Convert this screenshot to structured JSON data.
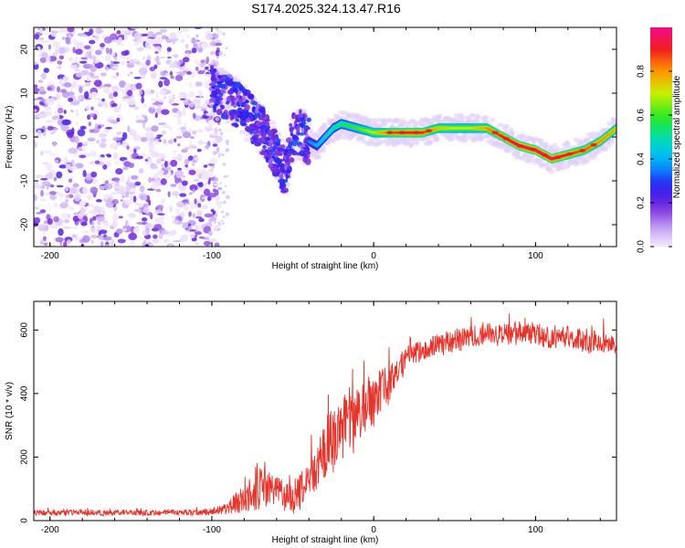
{
  "figure_title": "S174.2025.324.13.47.R16",
  "chart_data": [
    {
      "type": "heatmap",
      "name": "spectrogram",
      "xlabel": "Height of straight line (km)",
      "ylabel": "Frequency (Hz)",
      "xlim": [
        -210,
        150
      ],
      "ylim": [
        -25,
        25
      ],
      "xticks": [
        -200,
        -100,
        0,
        100
      ],
      "xtick_labels": [
        "-200",
        "-100",
        "0",
        "100"
      ],
      "yticks": [
        -20,
        -10,
        0,
        10,
        20
      ],
      "ytick_labels": [
        "-20",
        "-10",
        "0",
        "10",
        "20"
      ],
      "colorbar": {
        "label": "Normalized spectral amplitude",
        "range": [
          0.0,
          1.0
        ],
        "ticks": [
          0.0,
          0.2,
          0.4,
          0.6,
          0.8
        ],
        "tick_labels": [
          "0.0",
          "0.2",
          "0.4",
          "0.6",
          "0.8"
        ]
      },
      "noise_region_x": [
        -210,
        -95
      ],
      "ridge": {
        "x": [
          -100,
          -90,
          -80,
          -70,
          -60,
          -55,
          -50,
          -45,
          -40,
          -35,
          -30,
          -25,
          -20,
          -10,
          0,
          10,
          20,
          30,
          40,
          50,
          60,
          70,
          80,
          90,
          100,
          110,
          120,
          130,
          140,
          150
        ],
        "freq": [
          11,
          9,
          6,
          2,
          -4,
          -8,
          0,
          1,
          -1,
          -2,
          0,
          2,
          3,
          2,
          1,
          1,
          1,
          1,
          2,
          2,
          2,
          2,
          0,
          -2,
          -3,
          -5,
          -4,
          -3,
          -1,
          2
        ],
        "amplitude": [
          0.15,
          0.15,
          0.2,
          0.2,
          0.2,
          0.15,
          0.3,
          0.35,
          0.35,
          0.4,
          0.45,
          0.5,
          0.55,
          0.6,
          0.7,
          0.85,
          0.9,
          0.9,
          0.75,
          0.7,
          0.7,
          0.8,
          0.9,
          0.95,
          0.95,
          0.95,
          0.9,
          0.85,
          0.8,
          0.75
        ]
      }
    },
    {
      "type": "line",
      "name": "snr",
      "xlabel": "Height of straight line (km)",
      "ylabel": "SNR (10 * v/v)",
      "xlim": [
        -210,
        150
      ],
      "ylim": [
        0,
        690
      ],
      "xticks": [
        -200,
        -100,
        0,
        100
      ],
      "xtick_labels": [
        "-200",
        "-100",
        "0",
        "100"
      ],
      "yticks": [
        0,
        200,
        400,
        600
      ],
      "ytick_labels": [
        "0",
        "200",
        "400",
        "600"
      ],
      "color": "#e8332a",
      "envelope": {
        "x": [
          -210,
          -120,
          -100,
          -90,
          -80,
          -70,
          -60,
          -50,
          -40,
          -30,
          -20,
          -10,
          0,
          10,
          20,
          30,
          40,
          60,
          80,
          100,
          120,
          140,
          150
        ],
        "mean": [
          25,
          25,
          28,
          40,
          80,
          110,
          90,
          70,
          130,
          220,
          300,
          330,
          380,
          430,
          510,
          540,
          555,
          580,
          590,
          585,
          575,
          560,
          540
        ],
        "spread": [
          10,
          10,
          12,
          20,
          60,
          80,
          50,
          50,
          80,
          110,
          120,
          110,
          90,
          60,
          40,
          40,
          40,
          40,
          40,
          40,
          40,
          40,
          40
        ]
      }
    }
  ]
}
